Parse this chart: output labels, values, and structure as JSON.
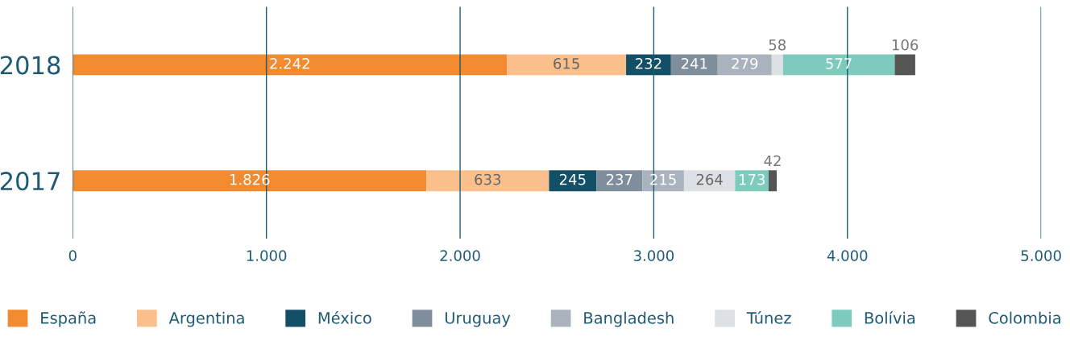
{
  "chart_data": {
    "type": "bar",
    "orientation": "horizontal",
    "stacked": true,
    "categories": [
      "2018",
      "2017"
    ],
    "series": [
      {
        "name": "España",
        "color": "#f28a30",
        "values": [
          2242,
          1826
        ],
        "value_labels": [
          "2.242",
          "1.826"
        ]
      },
      {
        "name": "Argentina",
        "color": "#fbbf8c",
        "values": [
          615,
          633
        ],
        "value_labels": [
          "615",
          "633"
        ]
      },
      {
        "name": "México",
        "color": "#134f66",
        "values": [
          232,
          245
        ],
        "value_labels": [
          "232",
          "245"
        ]
      },
      {
        "name": "Uruguay",
        "color": "#7f8e9c",
        "values": [
          241,
          237
        ],
        "value_labels": [
          "241",
          "237"
        ]
      },
      {
        "name": "Bangladesh",
        "color": "#aab3bd",
        "values": [
          279,
          215
        ],
        "value_labels": [
          "279",
          "215"
        ]
      },
      {
        "name": "Túnez",
        "color": "#dde0e4",
        "values": [
          58,
          264
        ],
        "value_labels": [
          "58",
          "264"
        ]
      },
      {
        "name": "Bolívia",
        "color": "#7ccbbd",
        "values": [
          577,
          173
        ],
        "value_labels": [
          "577",
          "173"
        ]
      },
      {
        "name": "Colombia",
        "color": "#555555",
        "values": [
          106,
          42
        ],
        "value_labels": [
          "106",
          "42"
        ]
      }
    ],
    "xlim": [
      0,
      5000
    ],
    "xticks": [
      0,
      {
        "value": 1000,
        "label": "1.000"
      },
      {
        "value": 2000,
        "label": "2.000"
      },
      {
        "value": 3000,
        "label": "3.000"
      },
      {
        "value": 4000,
        "label": "4.000"
      },
      {
        "value": 5000,
        "label": "5.000"
      }
    ],
    "grid": "x",
    "legend": "bottom"
  }
}
